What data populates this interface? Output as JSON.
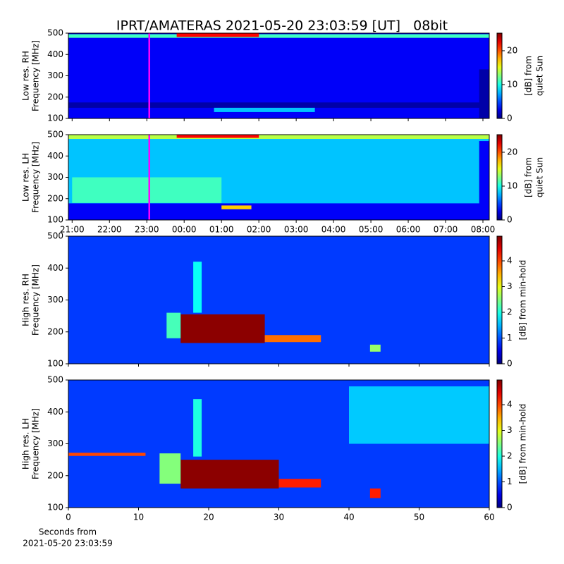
{
  "figure": {
    "title": "IPRT/AMATERAS 2021-05-20 23:03:59 [UT]   08bit",
    "xlabel": [
      "Seconds from",
      "2021-05-20 23:03:59"
    ]
  },
  "chart_data": [
    {
      "type": "heatmap",
      "ylabel": [
        "Low res. RH",
        "Frequency [MHz]"
      ],
      "colorbar_label": [
        "[dB] from",
        "quiet Sun"
      ],
      "colormap": "jet",
      "xlim": [
        20.9,
        32.17
      ],
      "ylim": [
        100,
        500
      ],
      "yticks": [
        100,
        200,
        300,
        400,
        500
      ],
      "clim": [
        0,
        25.2
      ],
      "cticks": [
        0,
        10,
        20
      ],
      "sharex_with": 1,
      "background": 3,
      "regions": [
        {
          "x": [
            20.9,
            32.17
          ],
          "y": [
            478,
            495
          ],
          "value": 11
        },
        {
          "x": [
            23.8,
            26.0
          ],
          "y": [
            482,
            500
          ],
          "value": 22
        },
        {
          "x": [
            20.9,
            32.17
          ],
          "y": [
            150,
            175
          ],
          "value": 1
        },
        {
          "x": [
            24.8,
            27.5
          ],
          "y": [
            130,
            150
          ],
          "value": 8
        },
        {
          "x": [
            31.9,
            32.17
          ],
          "y": [
            100,
            330
          ],
          "value": 1
        }
      ],
      "markers": [
        {
          "x": 23.066,
          "color": "#ff00ff"
        }
      ]
    },
    {
      "type": "heatmap",
      "ylabel": [
        "Low res. LH",
        "Frequency [MHz]"
      ],
      "colorbar_label": [
        "[dB] from",
        "quiet Sun"
      ],
      "colormap": "jet",
      "xlim": [
        20.9,
        32.17
      ],
      "ylim": [
        100,
        500
      ],
      "yticks": [
        100,
        200,
        300,
        400,
        500
      ],
      "clim": [
        0,
        25.2
      ],
      "cticks": [
        0,
        10,
        20
      ],
      "background": 8,
      "xticks": [
        {
          "value": 21,
          "label": "21:00"
        },
        {
          "value": 22,
          "label": "22:00"
        },
        {
          "value": 23,
          "label": "23:00"
        },
        {
          "value": 24,
          "label": "00:00"
        },
        {
          "value": 25,
          "label": "01:00"
        },
        {
          "value": 26,
          "label": "02:00"
        },
        {
          "value": 27,
          "label": "03:00"
        },
        {
          "value": 28,
          "label": "04:00"
        },
        {
          "value": 29,
          "label": "05:00"
        },
        {
          "value": 30,
          "label": "06:00"
        },
        {
          "value": 31,
          "label": "07:00"
        },
        {
          "value": 32,
          "label": "08:00"
        }
      ],
      "regions": [
        {
          "x": [
            20.9,
            32.17
          ],
          "y": [
            100,
            178
          ],
          "value": 3
        },
        {
          "x": [
            21.0,
            25.0
          ],
          "y": [
            180,
            300
          ],
          "value": 11
        },
        {
          "x": [
            20.9,
            32.17
          ],
          "y": [
            480,
            500
          ],
          "value": 14
        },
        {
          "x": [
            23.8,
            26.0
          ],
          "y": [
            485,
            500
          ],
          "value": 22
        },
        {
          "x": [
            25.0,
            25.8
          ],
          "y": [
            150,
            168
          ],
          "value": 17
        },
        {
          "x": [
            31.9,
            32.17
          ],
          "y": [
            100,
            470
          ],
          "value": 3
        }
      ],
      "markers": [
        {
          "x": 23.066,
          "color": "#ff00ff"
        }
      ]
    },
    {
      "type": "heatmap",
      "ylabel": [
        "High res. RH",
        "Frequency [MHz]"
      ],
      "colorbar_label": [
        "[dB] from min-hold"
      ],
      "colormap": "jet",
      "xlim": [
        0,
        60
      ],
      "ylim": [
        100,
        500
      ],
      "yticks": [
        100,
        200,
        300,
        400,
        500
      ],
      "clim": [
        0,
        4.96
      ],
      "cticks": [
        0,
        1,
        2,
        3,
        4
      ],
      "sharex_with": 3,
      "background": 0.9,
      "regions": [
        {
          "x": [
            16,
            28
          ],
          "y": [
            165,
            255
          ],
          "value": 4.9
        },
        {
          "x": [
            28,
            36
          ],
          "y": [
            168,
            190
          ],
          "value": 3.8
        },
        {
          "x": [
            14,
            16
          ],
          "y": [
            180,
            260
          ],
          "value": 2.2
        },
        {
          "x": [
            17.8,
            19
          ],
          "y": [
            260,
            420
          ],
          "value": 1.9
        },
        {
          "x": [
            43,
            44.5
          ],
          "y": [
            138,
            160
          ],
          "value": 2.6
        }
      ]
    },
    {
      "type": "heatmap",
      "ylabel": [
        "High res. LH",
        "Frequency [MHz]"
      ],
      "colorbar_label": [
        "[dB] from min-hold"
      ],
      "colormap": "jet",
      "xlim": [
        0,
        60
      ],
      "ylim": [
        100,
        500
      ],
      "yticks": [
        100,
        200,
        300,
        400,
        500
      ],
      "clim": [
        0,
        4.96
      ],
      "cticks": [
        0,
        1,
        2,
        3,
        4
      ],
      "background": 0.9,
      "xticks": [
        0,
        10,
        20,
        30,
        40,
        50,
        60
      ],
      "regions": [
        {
          "x": [
            0,
            11
          ],
          "y": [
            262,
            272
          ],
          "value": 4
        },
        {
          "x": [
            16,
            30
          ],
          "y": [
            160,
            250
          ],
          "value": 4.9
        },
        {
          "x": [
            30,
            36
          ],
          "y": [
            163,
            190
          ],
          "value": 4.2
        },
        {
          "x": [
            13,
            16
          ],
          "y": [
            175,
            270
          ],
          "value": 2.5
        },
        {
          "x": [
            17.8,
            19
          ],
          "y": [
            260,
            440
          ],
          "value": 2
        },
        {
          "x": [
            43,
            44.5
          ],
          "y": [
            130,
            160
          ],
          "value": 4.2
        },
        {
          "x": [
            40,
            60
          ],
          "y": [
            300,
            480
          ],
          "value": 1.6
        }
      ]
    }
  ]
}
